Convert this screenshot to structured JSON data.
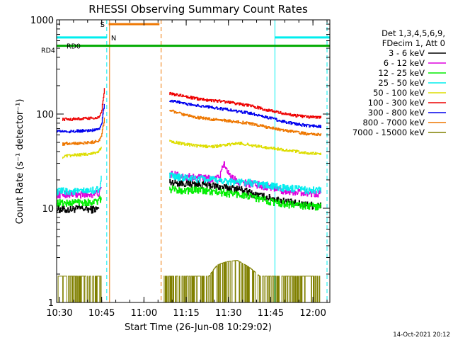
{
  "chart_data": {
    "type": "line",
    "title": "RHESSI Observing Summary Count Rates",
    "xlabel": "Start Time (26-Jun-08 10:29:02)",
    "ylabel": "Count Rate (s⁻¹ detector⁻¹)",
    "yscale": "log",
    "xlim_minutes": [
      0,
      97
    ],
    "ylim": [
      1,
      1000
    ],
    "x_ticks": [
      {
        "minute": 1,
        "label": "10:30"
      },
      {
        "minute": 16,
        "label": "10:45"
      },
      {
        "minute": 31,
        "label": "11:00"
      },
      {
        "minute": 46,
        "label": "11:15"
      },
      {
        "minute": 61,
        "label": "11:30"
      },
      {
        "minute": 76,
        "label": "11:45"
      },
      {
        "minute": 91,
        "label": "12:00"
      }
    ],
    "y_ticks": [
      {
        "value": 1,
        "label": "1"
      },
      {
        "value": 10,
        "label": "10"
      },
      {
        "value": 100,
        "label": "100"
      },
      {
        "value": 1000,
        "label": "1000"
      }
    ],
    "legend_title_1": "Det 1,3,4,5,6,9,",
    "legend_title_2": "FDecim 1, Att 0",
    "series": [
      {
        "name": "3 - 6 keV",
        "color": "#000000",
        "segments": [
          {
            "x": [
              0,
              4,
              8,
              12,
              15
            ],
            "y": [
              9.8,
              9.6,
              10.0,
              9.7,
              9.9
            ]
          },
          {
            "x": [
              40,
              45,
              50,
              55,
              60,
              65,
              70,
              75,
              80,
              85,
              90,
              94
            ],
            "y": [
              19,
              18.5,
              18,
              17.5,
              16.5,
              16,
              14,
              13,
              12,
              11.2,
              10.8,
              10.6
            ]
          }
        ]
      },
      {
        "name": "6 - 12 keV",
        "color": "#dd00dd",
        "segments": [
          {
            "x": [
              0,
              4,
              8,
              12,
              15,
              16
            ],
            "y": [
              14,
              14.2,
              13.8,
              14.1,
              14.5,
              16
            ]
          },
          {
            "x": [
              40,
              45,
              50,
              55,
              58,
              59,
              62,
              65,
              70,
              75,
              80,
              85,
              90,
              94
            ],
            "y": [
              23,
              22,
              21,
              20.5,
              21,
              30,
              21,
              19,
              18,
              17,
              15.5,
              15,
              14.5,
              14.5
            ]
          }
        ]
      },
      {
        "name": "12 - 25 keV",
        "color": "#00ee00",
        "segments": [
          {
            "x": [
              0,
              4,
              8,
              12,
              15,
              16
            ],
            "y": [
              11.5,
              11.3,
              11.8,
              11.5,
              12,
              13
            ]
          },
          {
            "x": [
              40,
              45,
              50,
              55,
              60,
              65,
              70,
              75,
              80,
              85,
              90,
              94
            ],
            "y": [
              16,
              15.5,
              15.5,
              15,
              14.5,
              14,
              13,
              12,
              11.2,
              10.8,
              10.5,
              10.5
            ]
          }
        ]
      },
      {
        "name": "25 - 50 keV",
        "color": "#00eeee",
        "segments": [
          {
            "x": [
              0,
              4,
              8,
              12,
              15,
              16
            ],
            "y": [
              15,
              15.2,
              15,
              15.3,
              16,
              22
            ]
          },
          {
            "x": [
              40,
              45,
              50,
              55,
              60,
              65,
              70,
              75,
              80,
              85,
              90,
              94
            ],
            "y": [
              22,
              21,
              20.5,
              20,
              19.5,
              19,
              18.5,
              17.5,
              16.5,
              16,
              15.5,
              15.5
            ]
          }
        ]
      },
      {
        "name": "50 - 100 keV",
        "color": "#dddd00",
        "segments": [
          {
            "x": [
              2,
              4,
              8,
              12,
              15,
              16
            ],
            "y": [
              35,
              36,
              37,
              38,
              40,
              45
            ]
          },
          {
            "x": [
              40,
              45,
              50,
              55,
              60,
              65,
              70,
              75,
              80,
              85,
              90,
              94
            ],
            "y": [
              52,
              48,
              46,
              45,
              47,
              49,
              46,
              44,
              42,
              40,
              38,
              38
            ]
          }
        ]
      },
      {
        "name": "100 - 300 keV",
        "color": "#ee0000",
        "segments": [
          {
            "x": [
              2,
              4,
              8,
              12,
              15,
              16,
              17
            ],
            "y": [
              88,
              88,
              89,
              90,
              92,
              105,
              190
            ]
          },
          {
            "x": [
              40,
              45,
              50,
              55,
              60,
              65,
              70,
              75,
              80,
              85,
              90,
              94
            ],
            "y": [
              165,
              155,
              145,
              140,
              135,
              128,
              120,
              110,
              102,
              96,
              93,
              92
            ]
          }
        ]
      },
      {
        "name": "300 - 800 keV",
        "color": "#0000ee",
        "segments": [
          {
            "x": [
              0,
              4,
              8,
              12,
              15,
              16,
              17
            ],
            "y": [
              66,
              65,
              66,
              67,
              70,
              80,
              130
            ]
          },
          {
            "x": [
              40,
              45,
              50,
              55,
              60,
              65,
              70,
              75,
              80,
              85,
              90,
              94
            ],
            "y": [
              140,
              130,
              123,
              118,
              112,
              106,
              100,
              92,
              84,
              78,
              75,
              74
            ]
          }
        ]
      },
      {
        "name": "800 - 7000 keV",
        "color": "#ee7700",
        "segments": [
          {
            "x": [
              2,
              4,
              8,
              12,
              15,
              16,
              17
            ],
            "y": [
              48,
              49,
              49,
              50,
              52,
              60,
              90
            ]
          },
          {
            "x": [
              40,
              45,
              50,
              55,
              60,
              65,
              70,
              75,
              80,
              85,
              90,
              94
            ],
            "y": [
              110,
              98,
              92,
              88,
              85,
              82,
              78,
              72,
              68,
              64,
              61,
              60
            ]
          }
        ]
      },
      {
        "name": "7000 - 15000 keV",
        "color": "#808000",
        "segments": [
          {
            "x": [
              0,
              4,
              8,
              12,
              16
            ],
            "y": [
              1.9,
              1.9,
              1.9,
              1.9,
              1.9
            ]
          },
          {
            "x": [
              38,
              42,
              46,
              50,
              54,
              57,
              60,
              64,
              68,
              72,
              76,
              80,
              84,
              88,
              92,
              94
            ],
            "y": [
              1.9,
              1.9,
              1.9,
              1.9,
              1.9,
              2.5,
              2.7,
              2.8,
              2.4,
              1.9,
              1.9,
              1.9,
              1.9,
              1.9,
              1.9,
              1.9
            ]
          }
        ]
      }
    ],
    "flags": [
      {
        "name": "Attenuator",
        "label": "S",
        "color": "#ee7700",
        "segments": [
          {
            "start": 18.5,
            "end": 36.5
          }
        ],
        "level": 900
      },
      {
        "name": "Night",
        "label": "N",
        "color": "#00eeee",
        "segments": [
          {
            "start": 0,
            "end": 17.8
          },
          {
            "start": 77.5,
            "end": 97
          }
        ],
        "level": 650
      },
      {
        "name": "RD0",
        "label": "RD0",
        "color": "#00aa00",
        "segments": [
          {
            "start": 0,
            "end": 97
          }
        ],
        "level": 530
      }
    ],
    "left_marker": "RD4",
    "vlines": [
      {
        "minute": 0,
        "color": "#00eeee",
        "style": "solid"
      },
      {
        "minute": 17.8,
        "color": "#00eeee",
        "style": "dashed"
      },
      {
        "minute": 18.8,
        "color": "#ee7700",
        "style": "solid"
      },
      {
        "minute": 37.1,
        "color": "#ee7700",
        "style": "dashed"
      },
      {
        "minute": 77.5,
        "color": "#00eeee",
        "style": "solid"
      },
      {
        "minute": 96,
        "color": "#00eeee",
        "style": "dashed"
      }
    ]
  },
  "footer_date": "14-Oct-2021 20:12"
}
